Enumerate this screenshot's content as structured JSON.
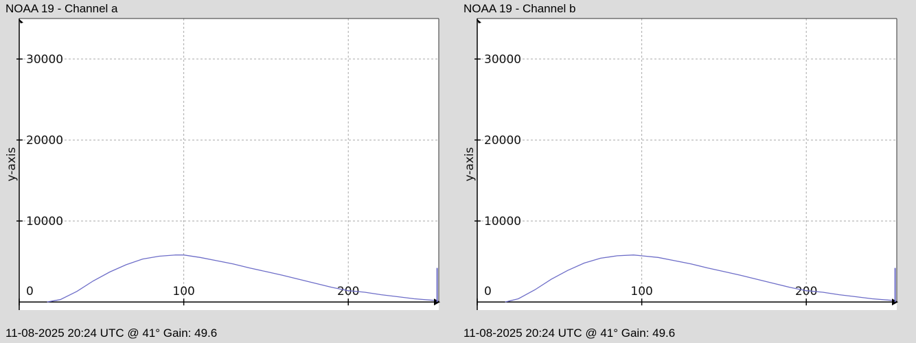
{
  "colors": {
    "background": "#dcdcdc",
    "plot_area": "#ffffff",
    "grid": "#a8a8a8",
    "series_line": "#6d6dc8",
    "axis": "#000000"
  },
  "chart_data": [
    {
      "type": "line",
      "title": "NOAA 19 - Channel a",
      "footer": "11-08-2025 20:24 UTC @ 41° Gain: 49.6",
      "ylabel": "y-axis",
      "xlabel": "",
      "xlim": [
        0,
        255
      ],
      "ylim": [
        -1000,
        35000
      ],
      "x_ticks": [
        0,
        100,
        200
      ],
      "y_ticks": [
        10000,
        20000,
        30000
      ],
      "grid": true,
      "series": [
        {
          "x": [
            17,
            25,
            35,
            45,
            55,
            65,
            75,
            85,
            95,
            100,
            110,
            120,
            130,
            140,
            150,
            160,
            170,
            180,
            190,
            200,
            210,
            220,
            230,
            240,
            252
          ],
          "values": [
            0,
            300,
            1300,
            2600,
            3700,
            4600,
            5300,
            5650,
            5800,
            5800,
            5500,
            5100,
            4700,
            4200,
            3750,
            3300,
            2800,
            2300,
            1800,
            1400,
            1200,
            900,
            650,
            400,
            200
          ]
        }
      ],
      "edge_spike": {
        "x": 254,
        "values": [
          0,
          4200
        ]
      }
    },
    {
      "type": "line",
      "title": "NOAA 19 - Channel b",
      "footer": "11-08-2025 20:24 UTC @ 41° Gain: 49.6",
      "ylabel": "y-axis",
      "xlabel": "",
      "xlim": [
        0,
        255
      ],
      "ylim": [
        -1000,
        35000
      ],
      "x_ticks": [
        0,
        100,
        200
      ],
      "y_ticks": [
        10000,
        20000,
        30000
      ],
      "grid": true,
      "series": [
        {
          "x": [
            17,
            25,
            35,
            45,
            55,
            65,
            75,
            85,
            95,
            100,
            110,
            120,
            130,
            140,
            150,
            160,
            170,
            180,
            190,
            200,
            210,
            220,
            230,
            240,
            252
          ],
          "values": [
            0,
            400,
            1500,
            2800,
            3900,
            4800,
            5400,
            5700,
            5800,
            5700,
            5500,
            5100,
            4700,
            4200,
            3750,
            3300,
            2800,
            2300,
            1800,
            1400,
            1200,
            900,
            650,
            400,
            200
          ]
        }
      ],
      "edge_spike": {
        "x": 254,
        "values": [
          0,
          4200
        ]
      }
    }
  ]
}
